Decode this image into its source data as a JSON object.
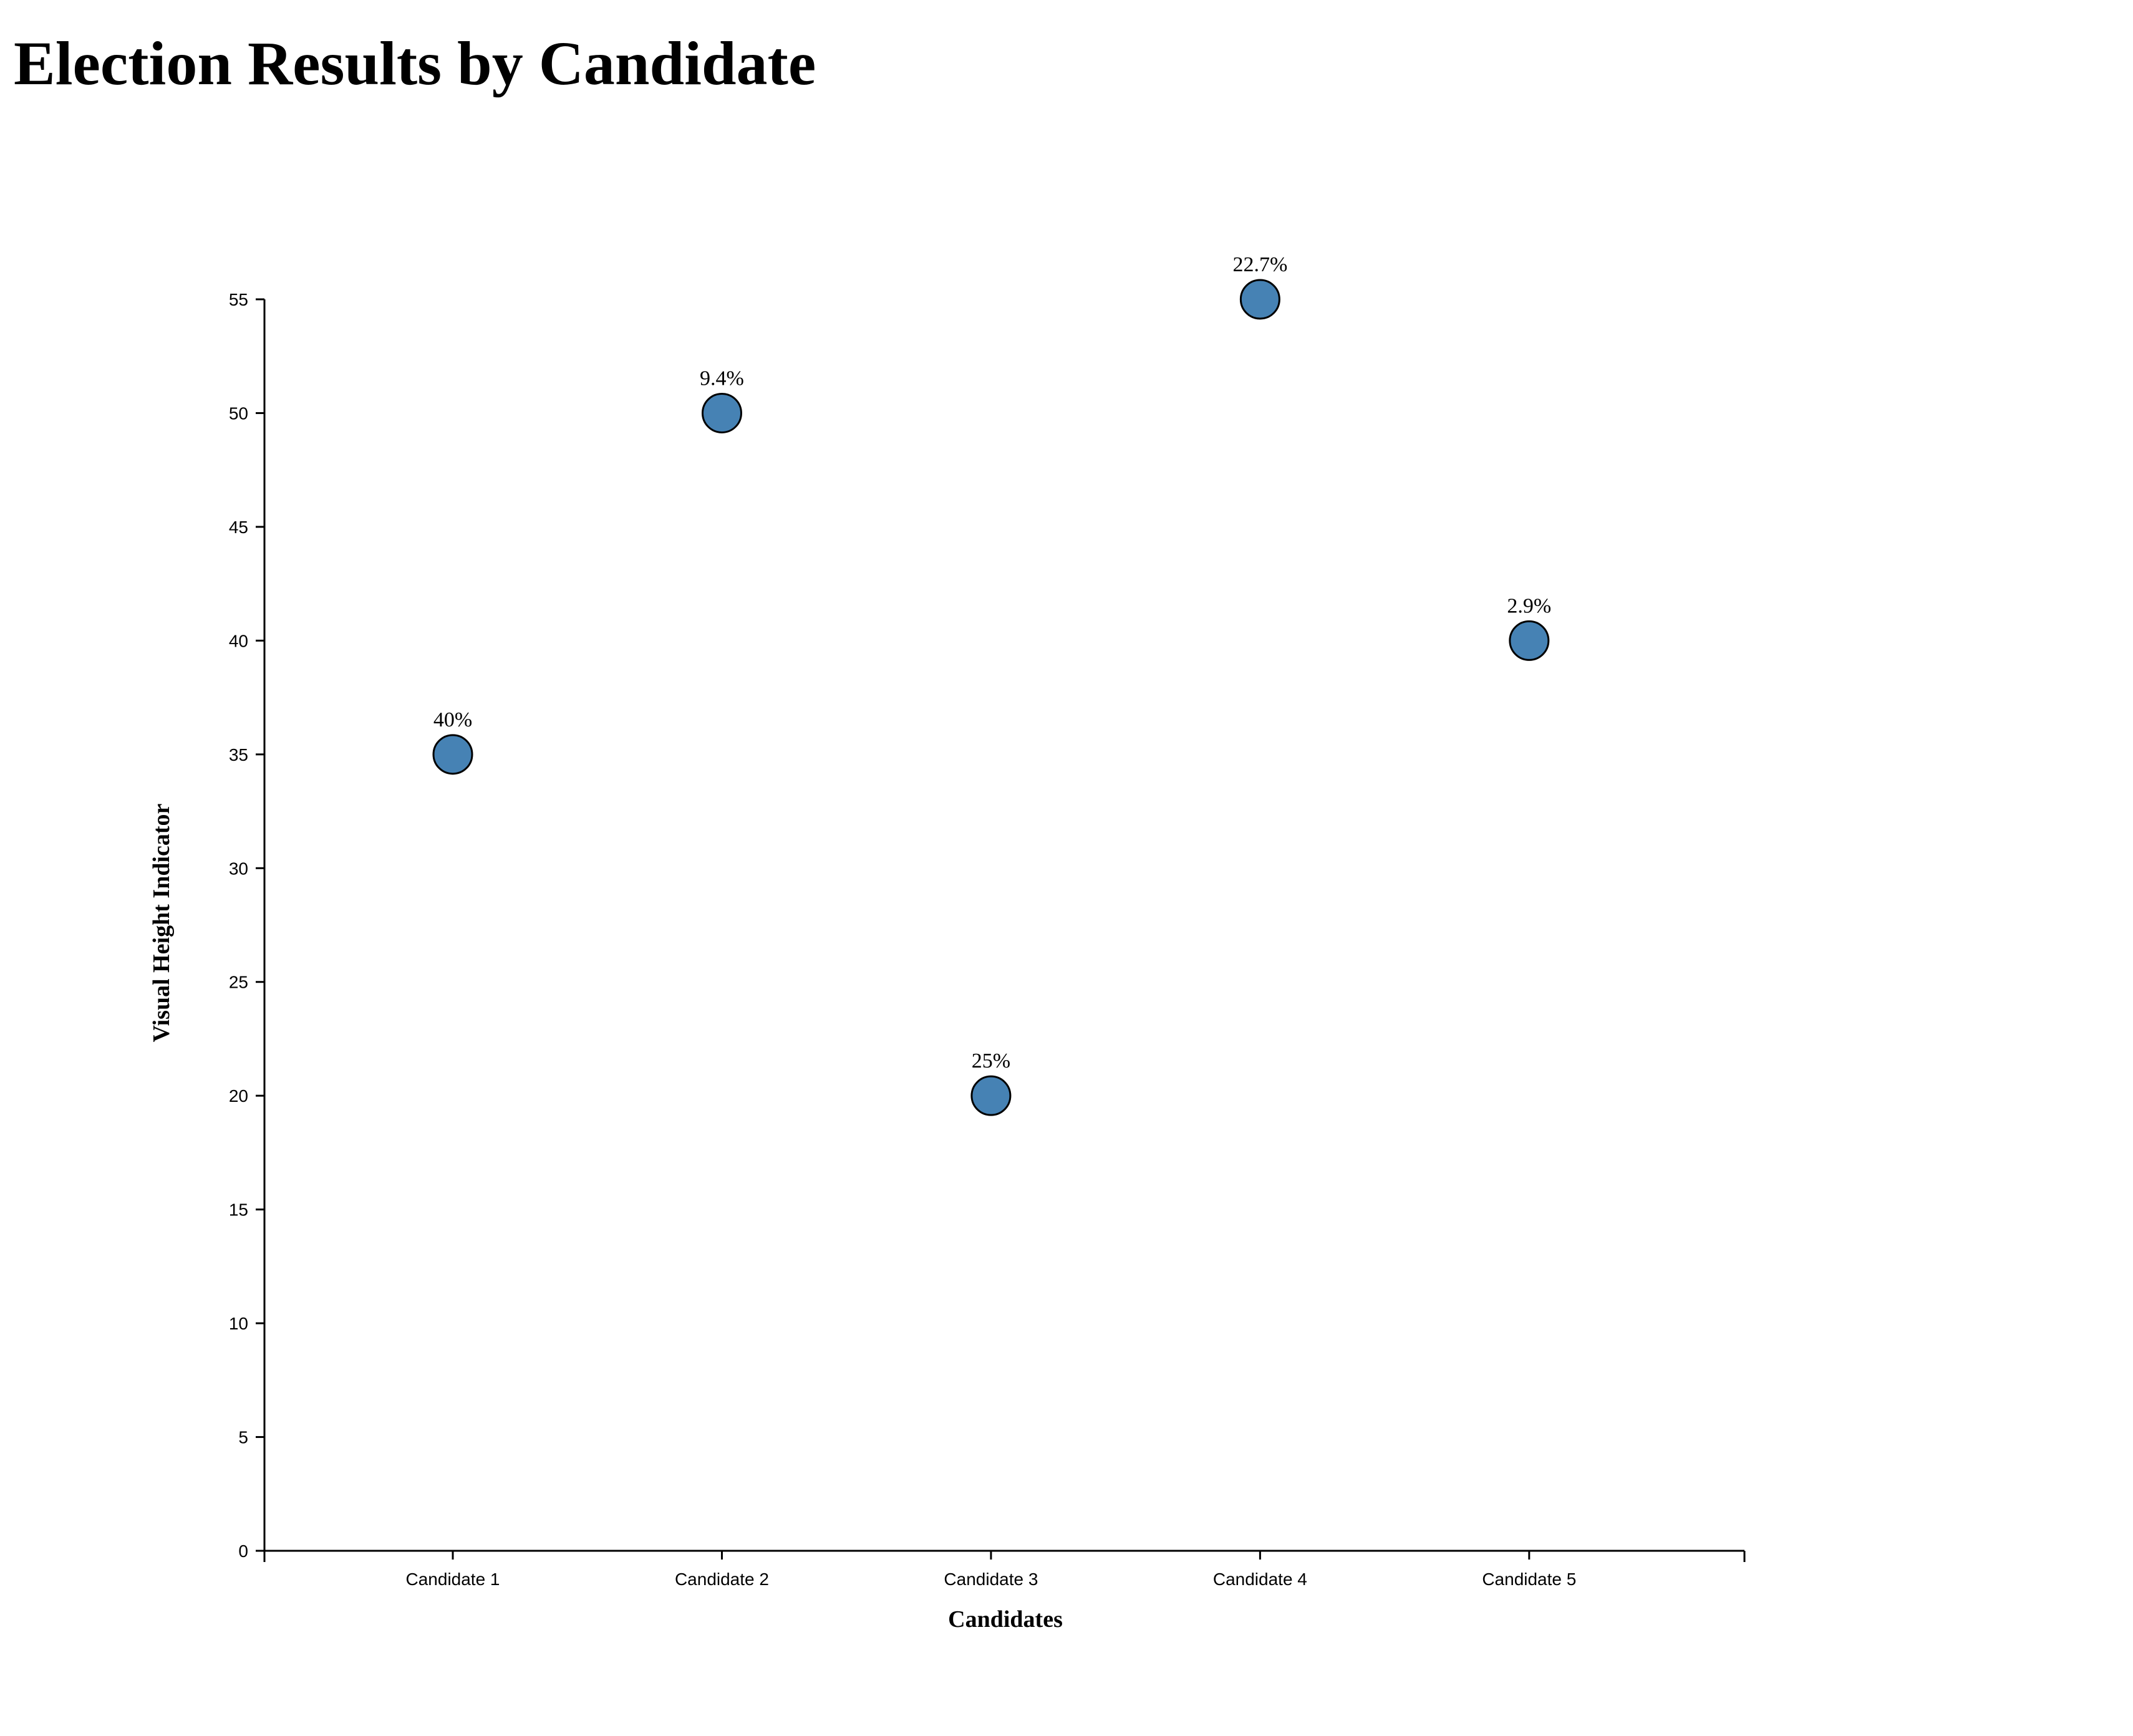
{
  "chart_data": {
    "type": "scatter",
    "title": "Election Results by Candidate",
    "xlabel": "Candidates",
    "ylabel": "Visual Height Indicator",
    "categories": [
      "Candidate 1",
      "Candidate 2",
      "Candidate 3",
      "Candidate 4",
      "Candidate 5"
    ],
    "values": [
      35,
      50,
      20,
      55,
      40
    ],
    "data_labels": [
      "40%",
      "9.4%",
      "25%",
      "22.7%",
      "2.9%"
    ],
    "ylim": [
      0,
      55
    ],
    "yticks": [
      0,
      5,
      10,
      15,
      20,
      25,
      30,
      35,
      40,
      45,
      50,
      55
    ],
    "grid": false,
    "legend": "none",
    "colors": {
      "point_fill": "#4682b4",
      "point_stroke": "#000000",
      "axis": "#000000"
    }
  }
}
